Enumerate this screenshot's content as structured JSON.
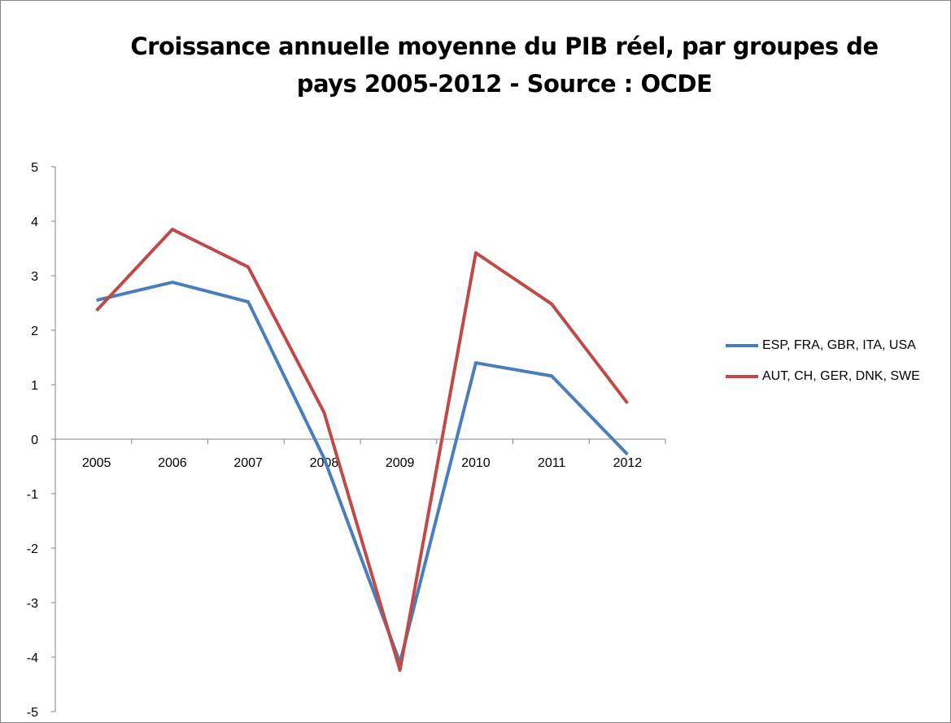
{
  "chart_data": {
    "type": "line",
    "title": "Croissance annuelle moyenne du PIB réel, par groupes de pays 2005-2012 - Source : OCDE",
    "xlabel": "",
    "ylabel": "",
    "categories": [
      "2005",
      "2006",
      "2007",
      "2008",
      "2009",
      "2010",
      "2011",
      "2012"
    ],
    "ylim": [
      -5,
      5
    ],
    "yticks": [
      "5",
      "4",
      "3",
      "2",
      "1",
      "0",
      "-1",
      "-2",
      "-3",
      "-4",
      "-5"
    ],
    "grid": false,
    "legend_position": "right",
    "series": [
      {
        "name": "ESP, FRA, GBR, ITA, USA",
        "color": "#4a7ebb",
        "values": [
          2.55,
          2.88,
          2.52,
          -0.35,
          -4.1,
          1.4,
          1.16,
          -0.28
        ]
      },
      {
        "name": "AUT, CH, GER, DNK, SWE",
        "color": "#be4b48",
        "values": [
          2.36,
          3.85,
          3.16,
          0.49,
          -4.24,
          3.42,
          2.48,
          0.66
        ]
      }
    ]
  }
}
